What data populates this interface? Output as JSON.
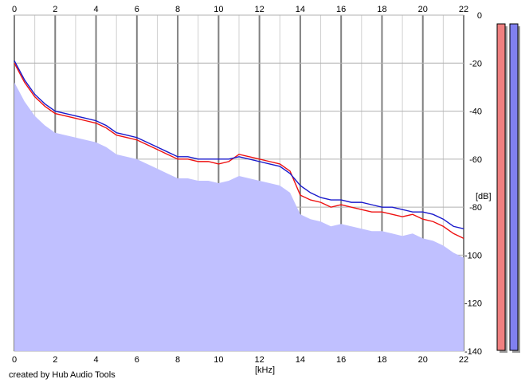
{
  "chart_data": {
    "type": "area",
    "xlabel": "[kHz]",
    "ylabel": "[dB]",
    "xlim": [
      0,
      22
    ],
    "ylim": [
      -140,
      0
    ],
    "x_ticks": [
      0,
      2,
      4,
      6,
      8,
      10,
      12,
      14,
      16,
      18,
      20,
      22
    ],
    "y_ticks": [
      0,
      -20,
      -40,
      -60,
      -80,
      -100,
      -120,
      -140
    ],
    "grid": true,
    "series": [
      {
        "color": "#ee1111",
        "x": [
          0,
          0.5,
          1,
          1.5,
          2,
          2.5,
          3,
          3.5,
          4,
          4.5,
          5,
          5.5,
          6,
          6.5,
          7,
          7.5,
          8,
          8.5,
          9,
          9.5,
          10,
          10.5,
          11,
          11.5,
          12,
          12.5,
          13,
          13.5,
          14,
          14.5,
          15,
          15.5,
          16,
          16.5,
          17,
          17.5,
          18,
          18.5,
          19,
          19.5,
          20,
          20.5,
          21,
          21.5,
          22
        ],
        "values": [
          -20,
          -28,
          -34,
          -38,
          -41,
          -42,
          -43,
          -44,
          -45,
          -47,
          -50,
          -51,
          -52,
          -54,
          -56,
          -58,
          -60,
          -60,
          -61,
          -61,
          -62,
          -61,
          -58,
          -59,
          -60,
          -61,
          -62,
          -65,
          -75,
          -77,
          -78,
          -80,
          -79,
          -80,
          -81,
          -82,
          -82,
          -83,
          -84,
          -83,
          -85,
          -86,
          -88,
          -91,
          -93
        ]
      },
      {
        "color": "#1a1acc",
        "x": [
          0,
          0.5,
          1,
          1.5,
          2,
          2.5,
          3,
          3.5,
          4,
          4.5,
          5,
          5.5,
          6,
          6.5,
          7,
          7.5,
          8,
          8.5,
          9,
          9.5,
          10,
          10.5,
          11,
          11.5,
          12,
          12.5,
          13,
          13.5,
          14,
          14.5,
          15,
          15.5,
          16,
          16.5,
          17,
          17.5,
          18,
          18.5,
          19,
          19.5,
          20,
          20.5,
          21,
          21.5,
          22
        ],
        "values": [
          -19,
          -27,
          -33,
          -37,
          -40,
          -41,
          -42,
          -43,
          -44,
          -46,
          -49,
          -50,
          -51,
          -53,
          -55,
          -57,
          -59,
          -59,
          -60,
          -60,
          -60,
          -60,
          -59,
          -60,
          -61,
          -62,
          -63,
          -66,
          -71,
          -74,
          -76,
          -77,
          -77,
          -78,
          -78,
          -79,
          -80,
          -80,
          -81,
          -82,
          -82,
          -83,
          -85,
          -88,
          -89
        ]
      }
    ],
    "level_meters": [
      {
        "color": "#f08080",
        "level": 1.0
      },
      {
        "color": "#8080f0",
        "level": 1.0
      }
    ],
    "fill_color": "#c0c0ff"
  },
  "footer": {
    "credit": "created by Hub Audio Tools"
  }
}
